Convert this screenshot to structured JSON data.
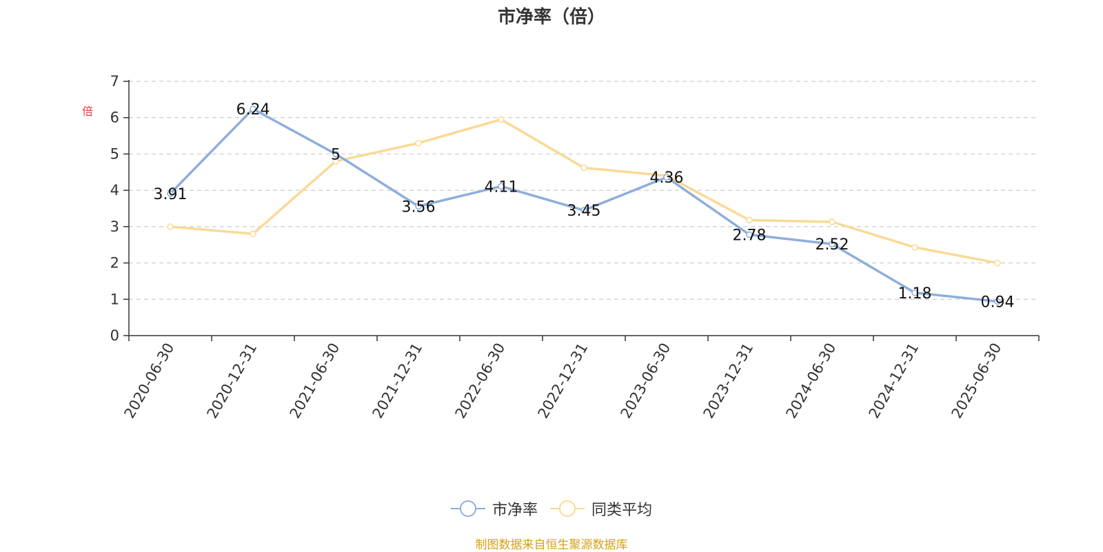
{
  "chart_data": {
    "type": "line",
    "title": "市净率（倍）",
    "ylabel": "倍",
    "ylim": [
      0,
      7
    ],
    "yticks": [
      0,
      1,
      2,
      3,
      4,
      5,
      6,
      7
    ],
    "grid": true,
    "legend_position": "bottom",
    "categories": [
      "2020-06-30",
      "2020-12-31",
      "2021-06-30",
      "2021-12-31",
      "2022-06-30",
      "2022-12-31",
      "2023-06-30",
      "2023-12-31",
      "2024-06-30",
      "2024-12-31",
      "2025-06-30"
    ],
    "series": [
      {
        "name": "市净率",
        "color": "#8eaedb",
        "values": [
          3.91,
          6.24,
          5,
          3.56,
          4.11,
          3.45,
          4.36,
          2.78,
          2.52,
          1.18,
          0.94
        ],
        "labels": [
          "3.91",
          "6.24",
          "5",
          "3.56",
          "4.11",
          "3.45",
          "4.36",
          "2.78",
          "2.52",
          "1.18",
          "0.94"
        ]
      },
      {
        "name": "同类平均",
        "color": "#fad996",
        "values": [
          3.0,
          2.8,
          4.8,
          5.3,
          5.95,
          4.62,
          4.4,
          3.18,
          3.13,
          2.43,
          2.0
        ]
      }
    ]
  },
  "source": "制图数据来自恒生聚源数据库"
}
